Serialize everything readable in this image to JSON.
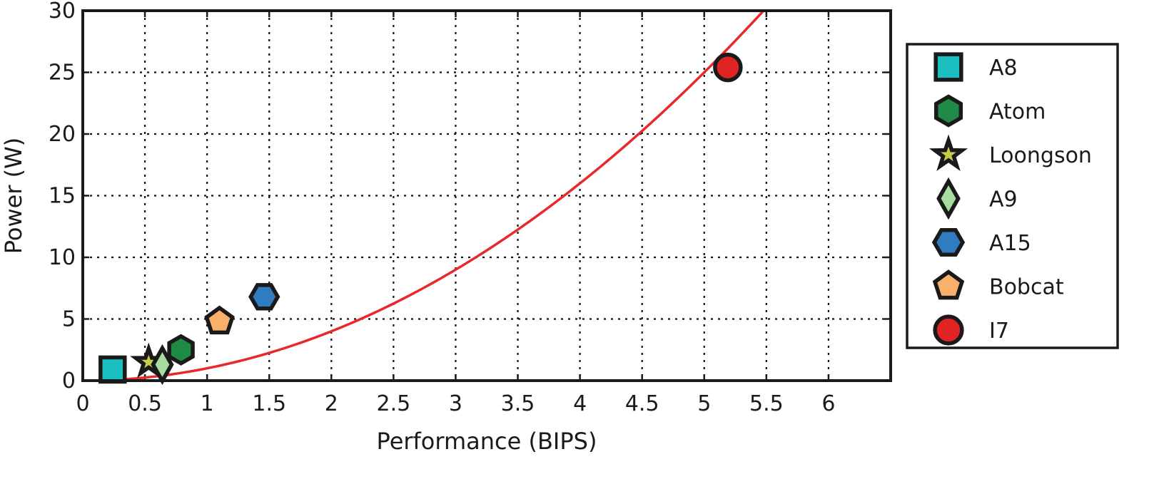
{
  "chart_data": {
    "type": "scatter",
    "xlabel": "Performance (BIPS)",
    "ylabel": "Power (W)",
    "xlim": [
      0,
      6.5
    ],
    "ylim": [
      0,
      30
    ],
    "x_ticks": [
      0,
      0.5,
      1,
      1.5,
      2,
      2.5,
      3,
      3.5,
      4,
      4.5,
      5,
      5.5,
      6
    ],
    "x_tick_labels": [
      "0",
      "0.5",
      "1",
      "1.5",
      "2",
      "2.5",
      "3",
      "3.5",
      "4",
      "4.5",
      "5",
      "5.5",
      "6"
    ],
    "y_ticks": [
      0,
      5,
      10,
      15,
      20,
      25,
      30
    ],
    "y_tick_labels": [
      "0",
      "5",
      "10",
      "15",
      "20",
      "25",
      "30"
    ],
    "grid": true,
    "legend_position": "right",
    "series": [
      {
        "name": "A8",
        "marker": "square",
        "color": "#1cbfbf",
        "x": 0.24,
        "y": 0.9
      },
      {
        "name": "Atom",
        "marker": "hexagon-pointy",
        "color": "#1e8a45",
        "x": 0.79,
        "y": 2.5
      },
      {
        "name": "Loongson",
        "marker": "star",
        "color": "#c8cd46",
        "x": 0.53,
        "y": 1.5
      },
      {
        "name": "A9",
        "marker": "diamond",
        "color": "#a8dca0",
        "x": 0.64,
        "y": 1.3
      },
      {
        "name": "A15",
        "marker": "hexagon-flat",
        "color": "#2f7cc0",
        "x": 1.46,
        "y": 6.8
      },
      {
        "name": "Bobcat",
        "marker": "pentagon",
        "color": "#f9b06d",
        "x": 1.1,
        "y": 4.8
      },
      {
        "name": "I7",
        "marker": "circle",
        "color": "#e02424",
        "x": 5.19,
        "y": 25.4
      }
    ],
    "fit_curve": {
      "color": "#e8282a",
      "description_function": "y = x^2",
      "x_range": [
        0.1,
        6.5
      ]
    }
  }
}
